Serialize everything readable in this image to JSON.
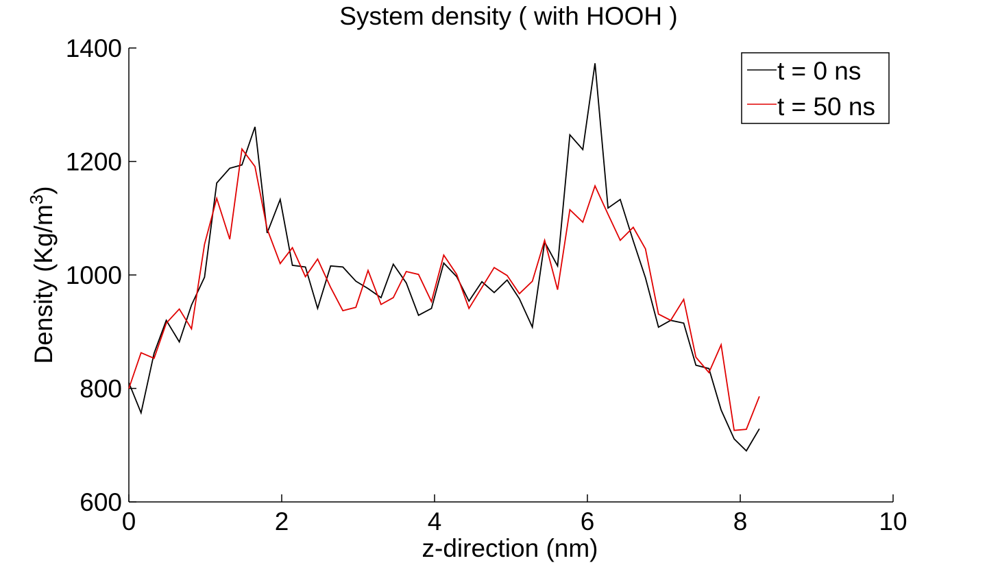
{
  "chart_data": {
    "type": "line",
    "title": "System density ( with HOOH )",
    "xlabel": "z-direction (nm)",
    "ylabel": "Density (Kg/m",
    "ylabel_sup": "3",
    "ylabel_end": ")",
    "xlim": [
      0,
      10
    ],
    "ylim": [
      600,
      1400
    ],
    "xticks": [
      0,
      2,
      4,
      6,
      8,
      10
    ],
    "yticks": [
      600,
      800,
      1000,
      1200,
      1400
    ],
    "grid": false,
    "legend_position": "top-right",
    "x": [
      0.0,
      0.16,
      0.33,
      0.49,
      0.66,
      0.82,
      0.99,
      1.15,
      1.32,
      1.48,
      1.65,
      1.81,
      1.98,
      2.14,
      2.31,
      2.47,
      2.64,
      2.8,
      2.97,
      3.13,
      3.3,
      3.46,
      3.63,
      3.79,
      3.96,
      4.12,
      4.29,
      4.45,
      4.62,
      4.78,
      4.95,
      5.11,
      5.28,
      5.44,
      5.61,
      5.77,
      5.94,
      6.1,
      6.27,
      6.43,
      6.6,
      6.76,
      6.93,
      7.09,
      7.26,
      7.42,
      7.59,
      7.75,
      7.92,
      8.08,
      8.25
    ],
    "series": [
      {
        "name": "t = 0 ns",
        "color": "#000000",
        "values": [
          810,
          757,
          862,
          920,
          882,
          947,
          996,
          1162,
          1188,
          1194,
          1261,
          1074,
          1133,
          1017,
          1014,
          941,
          1016,
          1014,
          989,
          976,
          960,
          1019,
          986,
          929,
          941,
          1021,
          997,
          954,
          988,
          969,
          991,
          958,
          908,
          1058,
          1016,
          1247,
          1221,
          1373,
          1118,
          1133,
          1060,
          995,
          908,
          920,
          915,
          841,
          835,
          762,
          711,
          690,
          729
        ]
      },
      {
        "name": "t = 50 ns",
        "color": "#e00000",
        "values": [
          800,
          863,
          853,
          915,
          940,
          905,
          1054,
          1135,
          1063,
          1222,
          1191,
          1081,
          1020,
          1048,
          997,
          1028,
          978,
          937,
          943,
          1008,
          948,
          960,
          1006,
          1001,
          953,
          1035,
          1001,
          941,
          978,
          1013,
          999,
          967,
          989,
          1061,
          974,
          1115,
          1093,
          1157,
          1107,
          1061,
          1084,
          1046,
          931,
          920,
          957,
          855,
          828,
          877,
          726,
          728,
          786
        ]
      }
    ]
  }
}
